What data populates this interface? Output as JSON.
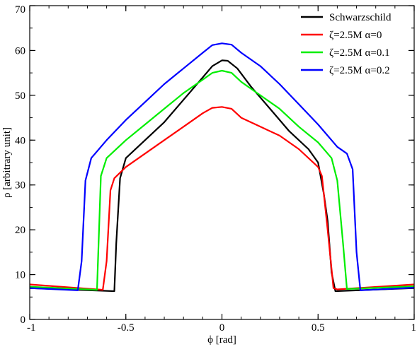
{
  "chart_data": {
    "type": "line",
    "title": "",
    "xlabel": "ϕ [rad]",
    "ylabel": "ρ [arbitrary unit]",
    "xlim": [
      -1,
      1
    ],
    "ylim": [
      0,
      70
    ],
    "x_ticks": [
      -1,
      -0.5,
      0,
      0.5,
      1
    ],
    "x_tick_labels": [
      "-1",
      "-0.5",
      "0",
      "0.5",
      "1"
    ],
    "y_ticks": [
      0,
      10,
      20,
      30,
      40,
      50,
      60,
      70
    ],
    "y_tick_labels": [
      "0",
      "10",
      "20",
      "30",
      "40",
      "50",
      "60",
      "70"
    ],
    "grid": false,
    "legend_position": "top-right",
    "series": [
      {
        "name": "Schwarzschild",
        "color": "#000000",
        "points": [
          [
            -1,
            7.0
          ],
          [
            -0.56,
            6.3
          ],
          [
            -0.55,
            17
          ],
          [
            -0.53,
            31.5
          ],
          [
            -0.5,
            36
          ],
          [
            -0.4,
            40
          ],
          [
            -0.3,
            44
          ],
          [
            -0.2,
            49
          ],
          [
            -0.1,
            54
          ],
          [
            -0.05,
            56.5
          ],
          [
            0,
            57.8
          ],
          [
            0.03,
            57.7
          ],
          [
            0.08,
            56
          ],
          [
            0.15,
            52
          ],
          [
            0.25,
            47
          ],
          [
            0.35,
            42
          ],
          [
            0.45,
            38
          ],
          [
            0.5,
            35
          ],
          [
            0.53,
            28
          ],
          [
            0.55,
            22
          ],
          [
            0.57,
            10.5
          ],
          [
            0.59,
            6.3
          ],
          [
            1,
            7.0
          ]
        ]
      },
      {
        "name": "ζ=2.5M  α=0",
        "color": "#ff0000",
        "points": [
          [
            -1,
            7.8
          ],
          [
            -0.62,
            6.6
          ],
          [
            -0.6,
            13
          ],
          [
            -0.58,
            28.8
          ],
          [
            -0.56,
            31.5
          ],
          [
            -0.5,
            34
          ],
          [
            -0.4,
            37
          ],
          [
            -0.3,
            40
          ],
          [
            -0.2,
            43
          ],
          [
            -0.1,
            46
          ],
          [
            -0.05,
            47.2
          ],
          [
            0,
            47.4
          ],
          [
            0.05,
            47
          ],
          [
            0.1,
            45
          ],
          [
            0.2,
            43
          ],
          [
            0.3,
            41
          ],
          [
            0.4,
            38
          ],
          [
            0.5,
            34
          ],
          [
            0.52,
            32
          ],
          [
            0.55,
            20
          ],
          [
            0.58,
            7
          ],
          [
            0.6,
            6.7
          ],
          [
            1,
            7.8
          ]
        ]
      },
      {
        "name": "ζ=2.5M  α=0.1",
        "color": "#00ee00",
        "points": [
          [
            -1,
            7.3
          ],
          [
            -0.65,
            6.6
          ],
          [
            -0.63,
            32
          ],
          [
            -0.6,
            36
          ],
          [
            -0.5,
            40
          ],
          [
            -0.4,
            43.5
          ],
          [
            -0.3,
            47
          ],
          [
            -0.2,
            50.5
          ],
          [
            -0.1,
            53.5
          ],
          [
            -0.05,
            55
          ],
          [
            0,
            55.5
          ],
          [
            0.05,
            55
          ],
          [
            0.1,
            53
          ],
          [
            0.2,
            50
          ],
          [
            0.3,
            47
          ],
          [
            0.4,
            43
          ],
          [
            0.5,
            39.5
          ],
          [
            0.57,
            36
          ],
          [
            0.6,
            31
          ],
          [
            0.63,
            17
          ],
          [
            0.65,
            6.8
          ],
          [
            1,
            7.4
          ]
        ]
      },
      {
        "name": "ζ=2.5M  α=0.2",
        "color": "#0000ff",
        "points": [
          [
            -1,
            7.0
          ],
          [
            -0.75,
            6.5
          ],
          [
            -0.73,
            13
          ],
          [
            -0.71,
            31
          ],
          [
            -0.68,
            36
          ],
          [
            -0.6,
            40
          ],
          [
            -0.5,
            44.5
          ],
          [
            -0.4,
            48.5
          ],
          [
            -0.3,
            52.5
          ],
          [
            -0.2,
            56
          ],
          [
            -0.1,
            59.5
          ],
          [
            -0.05,
            61.2
          ],
          [
            0,
            61.6
          ],
          [
            0.05,
            61.3
          ],
          [
            0.1,
            59.5
          ],
          [
            0.2,
            56.5
          ],
          [
            0.3,
            52.5
          ],
          [
            0.4,
            48
          ],
          [
            0.5,
            43.5
          ],
          [
            0.6,
            38.5
          ],
          [
            0.65,
            37
          ],
          [
            0.68,
            33.5
          ],
          [
            0.7,
            15
          ],
          [
            0.72,
            6.5
          ],
          [
            1,
            7.1
          ]
        ]
      }
    ]
  }
}
